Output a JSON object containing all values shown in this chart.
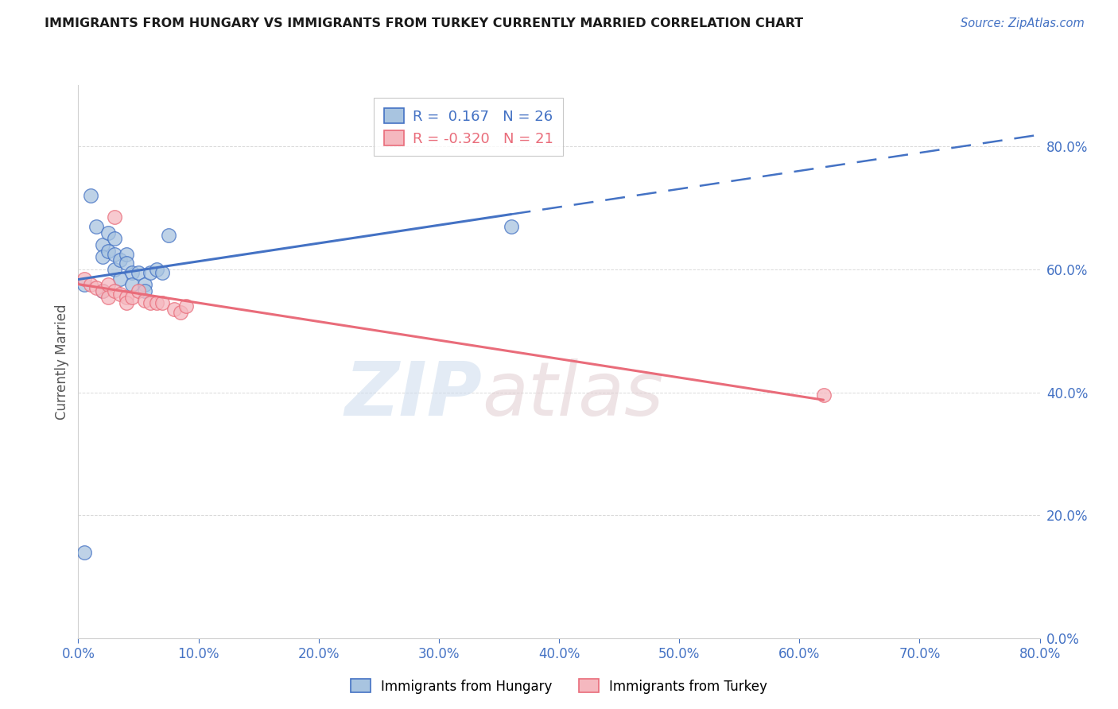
{
  "title": "IMMIGRANTS FROM HUNGARY VS IMMIGRANTS FROM TURKEY CURRENTLY MARRIED CORRELATION CHART",
  "source": "Source: ZipAtlas.com",
  "ylabel": "Currently Married",
  "xlim": [
    0.0,
    0.8
  ],
  "ylim": [
    0.0,
    0.9
  ],
  "yticks": [
    0.0,
    0.2,
    0.4,
    0.6,
    0.8
  ],
  "xticks": [
    0.0,
    0.1,
    0.2,
    0.3,
    0.4,
    0.5,
    0.6,
    0.7,
    0.8
  ],
  "background_color": "#ffffff",
  "grid_color": "#d0d0d0",
  "blue_color": "#4472c4",
  "pink_color": "#e96c7a",
  "blue_scatter_face": "#a8c4e0",
  "blue_scatter_edge": "#4472c4",
  "pink_scatter_face": "#f5b8bf",
  "pink_scatter_edge": "#e96c7a",
  "R_hungary": 0.167,
  "N_hungary": 26,
  "R_turkey": -0.32,
  "N_turkey": 21,
  "hungary_x": [
    0.005,
    0.01,
    0.015,
    0.02,
    0.02,
    0.025,
    0.025,
    0.03,
    0.03,
    0.03,
    0.035,
    0.035,
    0.04,
    0.04,
    0.045,
    0.045,
    0.05,
    0.055,
    0.055,
    0.06,
    0.065,
    0.07,
    0.075,
    0.36,
    0.005,
    0.02
  ],
  "hungary_y": [
    0.575,
    0.72,
    0.67,
    0.64,
    0.62,
    0.66,
    0.63,
    0.65,
    0.625,
    0.6,
    0.615,
    0.585,
    0.625,
    0.61,
    0.595,
    0.575,
    0.595,
    0.575,
    0.565,
    0.595,
    0.6,
    0.595,
    0.655,
    0.67,
    0.14,
    0.565
  ],
  "turkey_x": [
    0.005,
    0.01,
    0.015,
    0.02,
    0.025,
    0.025,
    0.03,
    0.035,
    0.04,
    0.04,
    0.045,
    0.05,
    0.055,
    0.06,
    0.065,
    0.07,
    0.08,
    0.085,
    0.09,
    0.62,
    0.03
  ],
  "turkey_y": [
    0.585,
    0.575,
    0.57,
    0.565,
    0.575,
    0.555,
    0.565,
    0.56,
    0.555,
    0.545,
    0.555,
    0.565,
    0.55,
    0.545,
    0.545,
    0.545,
    0.535,
    0.53,
    0.54,
    0.395,
    0.685
  ],
  "hungary_line_x0": 0.0,
  "hungary_line_x_solid_end": 0.36,
  "hungary_line_x1": 0.8,
  "hungary_line_y0": 0.575,
  "hungary_line_y_solid_end": 0.655,
  "hungary_line_y1": 0.795,
  "turkey_line_x0": 0.0,
  "turkey_line_x1": 0.8,
  "turkey_line_y0": 0.575,
  "turkey_line_y1": 0.395
}
